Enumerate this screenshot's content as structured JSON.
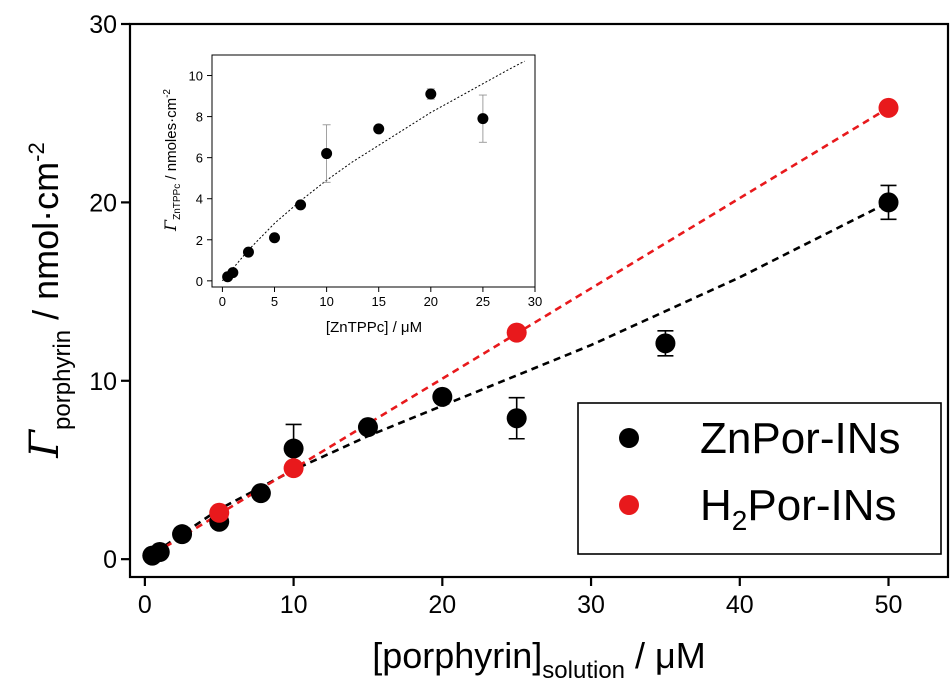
{
  "chart_data": [
    {
      "type": "scatter",
      "title": "",
      "xlim": [
        -1,
        54
      ],
      "ylim": [
        -1,
        30
      ],
      "xticks": [
        0,
        10,
        20,
        30,
        40,
        50
      ],
      "yticks": [
        0,
        10,
        20,
        30
      ],
      "xlabel": {
        "main": "[porphyrin]",
        "sub": "solution",
        "unit": " / μM"
      },
      "ylabel": {
        "symbol": "Γ",
        "sub": "porphyrin",
        "unit": " / nmol·cm",
        "sup": "-2"
      },
      "legend_position": "bottom-right",
      "series": [
        {
          "name": "ZnPor-INs",
          "color": "#000000",
          "x": [
            0.5,
            1,
            2.5,
            5,
            7.8,
            10,
            15,
            20,
            25,
            35,
            50
          ],
          "y": [
            0.2,
            0.4,
            1.4,
            2.1,
            3.7,
            6.2,
            7.4,
            9.1,
            7.9,
            12.1,
            20.0
          ],
          "yerr": [
            0,
            0,
            0,
            0,
            0,
            1.35,
            0,
            0,
            1.15,
            0.7,
            0.95
          ],
          "fit": {
            "style": "dashed",
            "x": [
              0,
              5,
              10,
              15,
              20,
              25,
              30,
              35,
              40,
              45,
              50
            ],
            "y": [
              0,
              2.8,
              5.0,
              6.9,
              8.6,
              10.3,
              12.0,
              13.9,
              15.8,
              17.9,
              20.0
            ]
          }
        },
        {
          "name": "H2Por-INs",
          "legend_label": {
            "main": "H",
            "sub": "2",
            "rest": "Por-INs"
          },
          "color": "#e8191c",
          "x": [
            5,
            10,
            25,
            50
          ],
          "y": [
            2.6,
            5.1,
            12.7,
            25.3
          ],
          "yerr": [
            0,
            0,
            0,
            0
          ],
          "fit": {
            "style": "dashed",
            "x": [
              0,
              50
            ],
            "y": [
              0,
              25.3
            ]
          }
        }
      ]
    },
    {
      "type": "scatter",
      "title": "",
      "xlim": [
        -1,
        30
      ],
      "ylim": [
        -0.3,
        11
      ],
      "xticks": [
        0,
        5,
        10,
        15,
        20,
        25,
        30
      ],
      "yticks": [
        0,
        2,
        4,
        6,
        8,
        10
      ],
      "xlabel": "[ZnTPPc] / μM",
      "ylabel": {
        "symbol": "Γ",
        "sub": "ZnTPPc",
        "unit": " / nmoles·cm",
        "sup": "-2"
      },
      "series": [
        {
          "color": "#000000",
          "x": [
            0.5,
            1,
            2.5,
            5,
            7.5,
            10,
            15,
            20,
            25
          ],
          "y": [
            0.2,
            0.4,
            1.4,
            2.1,
            3.7,
            6.2,
            7.4,
            9.1,
            7.9
          ],
          "yerr": [
            0,
            0,
            0,
            0,
            0,
            1.4,
            0,
            0.25,
            1.15
          ],
          "fit": {
            "style": "dotted",
            "x": [
              0,
              2.5,
              5,
              7.5,
              10,
              12.5,
              15,
              17.5,
              20,
              22.5,
              25,
              27.5,
              29
            ],
            "y": [
              0,
              1.5,
              2.8,
              3.9,
              4.9,
              5.8,
              6.6,
              7.4,
              8.2,
              8.9,
              9.6,
              10.3,
              10.7
            ]
          }
        }
      ]
    }
  ]
}
